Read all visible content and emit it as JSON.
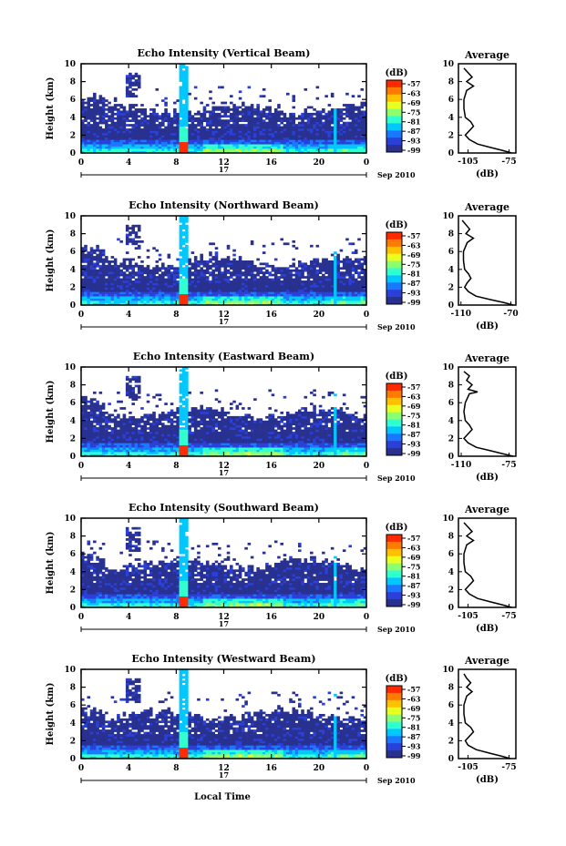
{
  "figure": {
    "xlabel": "Local Time",
    "date_label_day": "17",
    "date_label_month": "Sep 2010"
  },
  "colorbar": {
    "unit": "(dB)",
    "ticks": [
      "-57",
      "-63",
      "-69",
      "-75",
      "-81",
      "-87",
      "-93",
      "-99"
    ],
    "colors": [
      "#ff2a00",
      "#ff7a00",
      "#ffc000",
      "#e8ff20",
      "#8cff70",
      "#30ffd0",
      "#00c8ff",
      "#1a78ff",
      "#2a40d8",
      "#283090"
    ]
  },
  "chart_data": [
    {
      "type": "heatmap",
      "title": "Echo Intensity (Vertical Beam)",
      "ylabel": "Height (km)",
      "xticks": [
        "0",
        "4",
        "8",
        "12",
        "16",
        "20",
        "0"
      ],
      "yticks": [
        "0",
        "2",
        "4",
        "6",
        "8",
        "10"
      ],
      "xlim": [
        0,
        24
      ],
      "ylim": [
        0,
        10
      ],
      "profile": {
        "title": "Average",
        "xlabel": "(dB)",
        "xticks": [
          "-105",
          "-75"
        ],
        "xlim": [
          -112,
          -70
        ],
        "yticks": [
          "0",
          "2",
          "4",
          "6",
          "8",
          "10"
        ],
        "height_km": [
          0,
          0.3,
          0.6,
          1.0,
          1.5,
          2.0,
          2.5,
          3.0,
          3.5,
          4.0,
          5.0,
          6.0,
          7.0,
          7.5,
          8.0,
          8.5,
          9.0,
          9.5
        ],
        "db": [
          -73,
          -80,
          -88,
          -98,
          -104,
          -107,
          -104,
          -101,
          -103,
          -107,
          -108,
          -108,
          -106,
          -101,
          -106,
          -102,
          -105,
          -108
        ]
      }
    },
    {
      "type": "heatmap",
      "title": "Echo Intensity (Northward Beam)",
      "ylabel": "Height (km)",
      "xticks": [
        "0",
        "4",
        "8",
        "12",
        "16",
        "20",
        "0"
      ],
      "yticks": [
        "0",
        "2",
        "4",
        "6",
        "8",
        "10"
      ],
      "xlim": [
        0,
        24
      ],
      "ylim": [
        0,
        10
      ],
      "profile": {
        "title": "Average",
        "xlabel": "(dB)",
        "xticks": [
          "-110",
          "-70"
        ],
        "xlim": [
          -112,
          -66
        ],
        "yticks": [
          "0",
          "2",
          "4",
          "6",
          "8",
          "10"
        ],
        "height_km": [
          0,
          0.3,
          0.6,
          1.0,
          1.5,
          2.0,
          2.5,
          3.0,
          3.5,
          4.0,
          5.0,
          6.0,
          7.0,
          7.5,
          8.0,
          8.5,
          9.0,
          9.5
        ],
        "db": [
          -68,
          -76,
          -86,
          -98,
          -104,
          -107,
          -105,
          -102,
          -104,
          -107,
          -108,
          -108,
          -105,
          -100,
          -106,
          -103,
          -106,
          -109
        ]
      }
    },
    {
      "type": "heatmap",
      "title": "Echo Intensity (Eastward Beam)",
      "ylabel": "Height (km)",
      "xticks": [
        "0",
        "4",
        "8",
        "12",
        "16",
        "20",
        "0"
      ],
      "yticks": [
        "0",
        "2",
        "4",
        "6",
        "8",
        "10"
      ],
      "xlim": [
        0,
        24
      ],
      "ylim": [
        0,
        10
      ],
      "profile": {
        "title": "Average",
        "xlabel": "(dB)",
        "xticks": [
          "-110",
          "-75"
        ],
        "xlim": [
          -112,
          -70
        ],
        "yticks": [
          "0",
          "2",
          "4",
          "6",
          "8",
          "10"
        ],
        "height_km": [
          0,
          0.3,
          0.6,
          1.0,
          1.5,
          2.0,
          2.5,
          3.0,
          3.5,
          4.0,
          5.0,
          6.0,
          7.0,
          7.2,
          7.5,
          8.0,
          8.5,
          9.0,
          9.5
        ],
        "db": [
          -72,
          -80,
          -88,
          -99,
          -105,
          -108,
          -105,
          -102,
          -104,
          -107,
          -108,
          -107,
          -104,
          -98,
          -105,
          -102,
          -106,
          -104,
          -108
        ]
      }
    },
    {
      "type": "heatmap",
      "title": "Echo Intensity (Southward Beam)",
      "ylabel": "Height (km)",
      "xticks": [
        "0",
        "4",
        "8",
        "12",
        "16",
        "20",
        "0"
      ],
      "yticks": [
        "0",
        "2",
        "4",
        "6",
        "8",
        "10"
      ],
      "xlim": [
        0,
        24
      ],
      "ylim": [
        0,
        10
      ],
      "profile": {
        "title": "Average",
        "xlabel": "(dB)",
        "xticks": [
          "-105",
          "-75"
        ],
        "xlim": [
          -112,
          -70
        ],
        "yticks": [
          "0",
          "2",
          "4",
          "6",
          "8",
          "10"
        ],
        "height_km": [
          0,
          0.3,
          0.6,
          1.0,
          1.5,
          2.0,
          2.5,
          3.0,
          3.5,
          4.0,
          5.0,
          6.0,
          7.0,
          7.5,
          8.0,
          8.5,
          9.0,
          9.5
        ],
        "db": [
          -73,
          -80,
          -88,
          -98,
          -104,
          -107,
          -104,
          -101,
          -103,
          -107,
          -108,
          -108,
          -106,
          -101,
          -106,
          -102,
          -105,
          -108
        ]
      }
    },
    {
      "type": "heatmap",
      "title": "Echo Intensity (Westward Beam)",
      "ylabel": "Height (km)",
      "xticks": [
        "0",
        "4",
        "8",
        "12",
        "16",
        "20",
        "0"
      ],
      "yticks": [
        "0",
        "2",
        "4",
        "6",
        "8",
        "10"
      ],
      "xlim": [
        0,
        24
      ],
      "ylim": [
        0,
        10
      ],
      "profile": {
        "title": "Average",
        "xlabel": "(dB)",
        "xticks": [
          "-105",
          "-75"
        ],
        "xlim": [
          -112,
          -70
        ],
        "yticks": [
          "0",
          "2",
          "4",
          "6",
          "8",
          "10"
        ],
        "height_km": [
          0,
          0.3,
          0.6,
          1.0,
          1.5,
          2.0,
          2.5,
          3.0,
          3.5,
          4.0,
          5.0,
          6.0,
          7.0,
          7.5,
          8.0,
          8.5,
          9.0,
          9.5
        ],
        "db": [
          -74,
          -81,
          -89,
          -99,
          -105,
          -107,
          -104,
          -101,
          -103,
          -107,
          -108,
          -108,
          -106,
          -102,
          -106,
          -103,
          -106,
          -108
        ]
      }
    }
  ]
}
